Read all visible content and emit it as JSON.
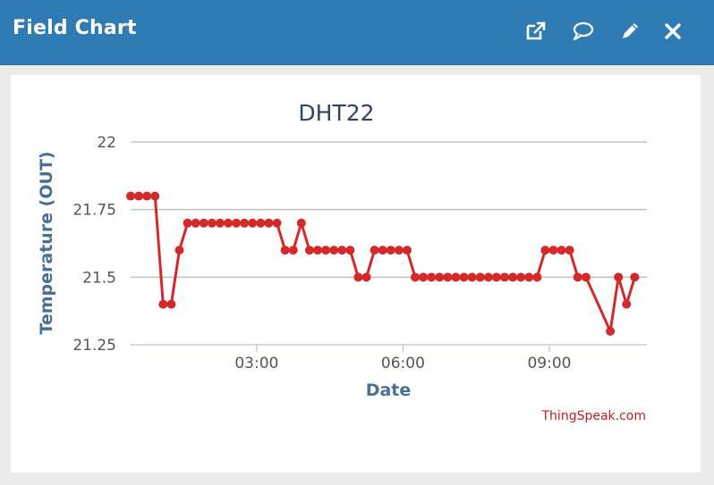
{
  "window": {
    "title": "Field Chart",
    "icons": [
      "external-link-icon",
      "comment-icon",
      "pencil-icon",
      "close-icon"
    ]
  },
  "colors": {
    "header": "#2f7cb5",
    "series": "#d4292a",
    "axis_label": "#4a6f94",
    "grid": "#c0c0c0"
  },
  "chart_data": {
    "type": "line",
    "title": "DHT22",
    "xlabel": "Date",
    "ylabel": "Temperature (OUT)",
    "credit": "ThingSpeak.com",
    "x_ticks": [
      "03:00",
      "06:00",
      "09:00"
    ],
    "y_ticks": [
      "22",
      "21.75",
      "21.5",
      "21.25"
    ],
    "ylim": [
      21.25,
      22
    ],
    "xlim": [
      "00:25",
      "11:00"
    ],
    "grid": true,
    "series": [
      {
        "x": [
          "00:25",
          "00:35",
          "00:45",
          "00:55",
          "01:05",
          "01:15",
          "01:25",
          "01:35",
          "01:45",
          "01:55",
          "02:05",
          "02:15",
          "02:25",
          "02:35",
          "02:45",
          "02:55",
          "03:05",
          "03:15",
          "03:25",
          "03:35",
          "03:45",
          "03:55",
          "04:05",
          "04:15",
          "04:25",
          "04:35",
          "04:45",
          "04:55",
          "05:05",
          "05:15",
          "05:25",
          "05:35",
          "05:45",
          "05:55",
          "06:05",
          "06:15",
          "06:25",
          "06:35",
          "06:45",
          "06:55",
          "07:05",
          "07:15",
          "07:25",
          "07:35",
          "07:45",
          "07:55",
          "08:05",
          "08:15",
          "08:25",
          "08:35",
          "08:45",
          "08:55",
          "09:05",
          "09:15",
          "09:25",
          "09:35",
          "09:45",
          "10:15",
          "10:25",
          "10:35",
          "10:45"
        ],
        "values": [
          21.8,
          21.8,
          21.8,
          21.8,
          21.4,
          21.4,
          21.6,
          21.7,
          21.7,
          21.7,
          21.7,
          21.7,
          21.7,
          21.7,
          21.7,
          21.7,
          21.7,
          21.7,
          21.7,
          21.6,
          21.6,
          21.7,
          21.6,
          21.6,
          21.6,
          21.6,
          21.6,
          21.6,
          21.5,
          21.5,
          21.6,
          21.6,
          21.6,
          21.6,
          21.6,
          21.5,
          21.5,
          21.5,
          21.5,
          21.5,
          21.5,
          21.5,
          21.5,
          21.5,
          21.5,
          21.5,
          21.5,
          21.5,
          21.5,
          21.5,
          21.5,
          21.6,
          21.6,
          21.6,
          21.6,
          21.5,
          21.5,
          21.3,
          21.5,
          21.4,
          21.5
        ]
      }
    ]
  }
}
